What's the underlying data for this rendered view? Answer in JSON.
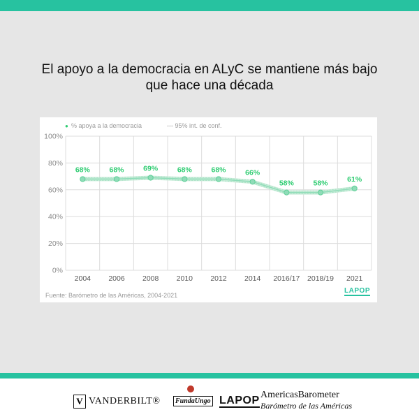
{
  "headline": {
    "line1": "El apoyo a la democracia en ALyC se mantiene más bajo",
    "line2": "que hace una década"
  },
  "source_note": "Fuente: Barómetro de las Américas, 2004-2021",
  "chart_logo": "LAPOP",
  "colors": {
    "accent": "#27c2a0",
    "series": "#2ecc71",
    "series_line": "#8fdcb8",
    "background": "#e6e6e6"
  },
  "chart_data": {
    "type": "line",
    "title": "",
    "xlabel": "",
    "ylabel": "",
    "categories": [
      "2004",
      "2006",
      "2008",
      "2010",
      "2012",
      "2014",
      "2016/17",
      "2018/19",
      "2021"
    ],
    "series": [
      {
        "name": "% apoya a la democracia",
        "values": [
          68,
          68,
          69,
          68,
          68,
          66,
          58,
          58,
          61
        ],
        "labels": [
          "68%",
          "68%",
          "69%",
          "68%",
          "68%",
          "66%",
          "58%",
          "58%",
          "61%"
        ]
      }
    ],
    "confidence_interval_label": "--- 95% int. de conf.",
    "legend_marker": "●",
    "yticks": [
      0,
      20,
      40,
      60,
      80,
      100
    ],
    "ytick_labels": [
      "0%",
      "20%",
      "40%",
      "60%",
      "80%",
      "100%"
    ],
    "ylim": [
      0,
      100
    ],
    "grid": true,
    "legend_position": "top-left"
  },
  "footer": {
    "vanderbilt_emblem": "V",
    "vanderbilt": "VANDERBILT®",
    "fundaungo": "FundaUngo",
    "lapop": "LAPOP",
    "americas_barometer": "AmericasBarometer",
    "barometro": "Barómetro de las Américas"
  }
}
